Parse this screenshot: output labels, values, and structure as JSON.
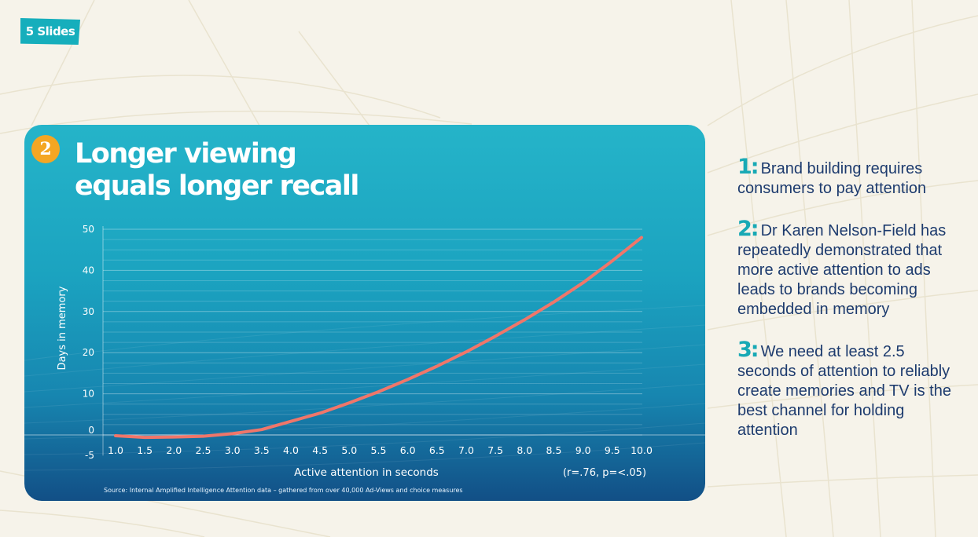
{
  "tag": "5 Slides",
  "badge": "2",
  "title_lines": [
    "Longer viewing",
    "equals longer recall"
  ],
  "source": "Source: Internal Amplified Intelligence Attention data – gathered from over 40,000 Ad-Views and choice measures",
  "points": [
    {
      "num": "1:",
      "text": "Brand building requires consumers to pay attention"
    },
    {
      "num": "2:",
      "text": "Dr Karen Nelson-Field has repeatedly demonstrated that more active attention to ads leads to brands becoming embedded in memory"
    },
    {
      "num": "3:",
      "text": "We need at least 2.5 seconds of attention to reliably create memories and TV is the best channel for holding attention"
    }
  ],
  "colors": {
    "curve": "#f0766a",
    "accent": "#18a9b5",
    "badge": "#f4a623",
    "text": "#1d3b6e"
  },
  "chart_data": {
    "type": "line",
    "xlabel": "Active attention in seconds",
    "ylabel": "Days in memory",
    "annotation": "(r=.76, p=<.05)",
    "x_ticks": [
      "1.0",
      "1.5",
      "2.0",
      "2.5",
      "3.0",
      "3.5",
      "4.0",
      "4.5",
      "5.0",
      "5.5",
      "6.0",
      "6.5",
      "7.0",
      "7.5",
      "8.0",
      "8.5",
      "9.0",
      "9.5",
      "10.0"
    ],
    "y_ticks": [
      "50",
      "40",
      "30",
      "20",
      "10",
      "0",
      "-5"
    ],
    "y_tick_values": [
      50,
      40,
      30,
      20,
      10,
      0,
      -5
    ],
    "xlim": [
      1.0,
      10.0
    ],
    "ylim": [
      -5,
      50
    ],
    "grid": true,
    "series": [
      {
        "x": [
          1.0,
          1.5,
          2.0,
          2.5,
          3.0,
          3.5,
          4.0,
          4.5,
          5.0,
          5.5,
          6.0,
          6.5,
          7.0,
          7.5,
          8.0,
          8.5,
          9.0,
          9.5,
          10.0
        ],
        "y": [
          -0.2,
          -0.6,
          -0.5,
          -0.3,
          0.3,
          1.3,
          3.3,
          5.3,
          7.8,
          10.5,
          13.5,
          16.7,
          20.2,
          24.0,
          28.0,
          32.3,
          37.0,
          42.3,
          48.0
        ]
      }
    ]
  }
}
